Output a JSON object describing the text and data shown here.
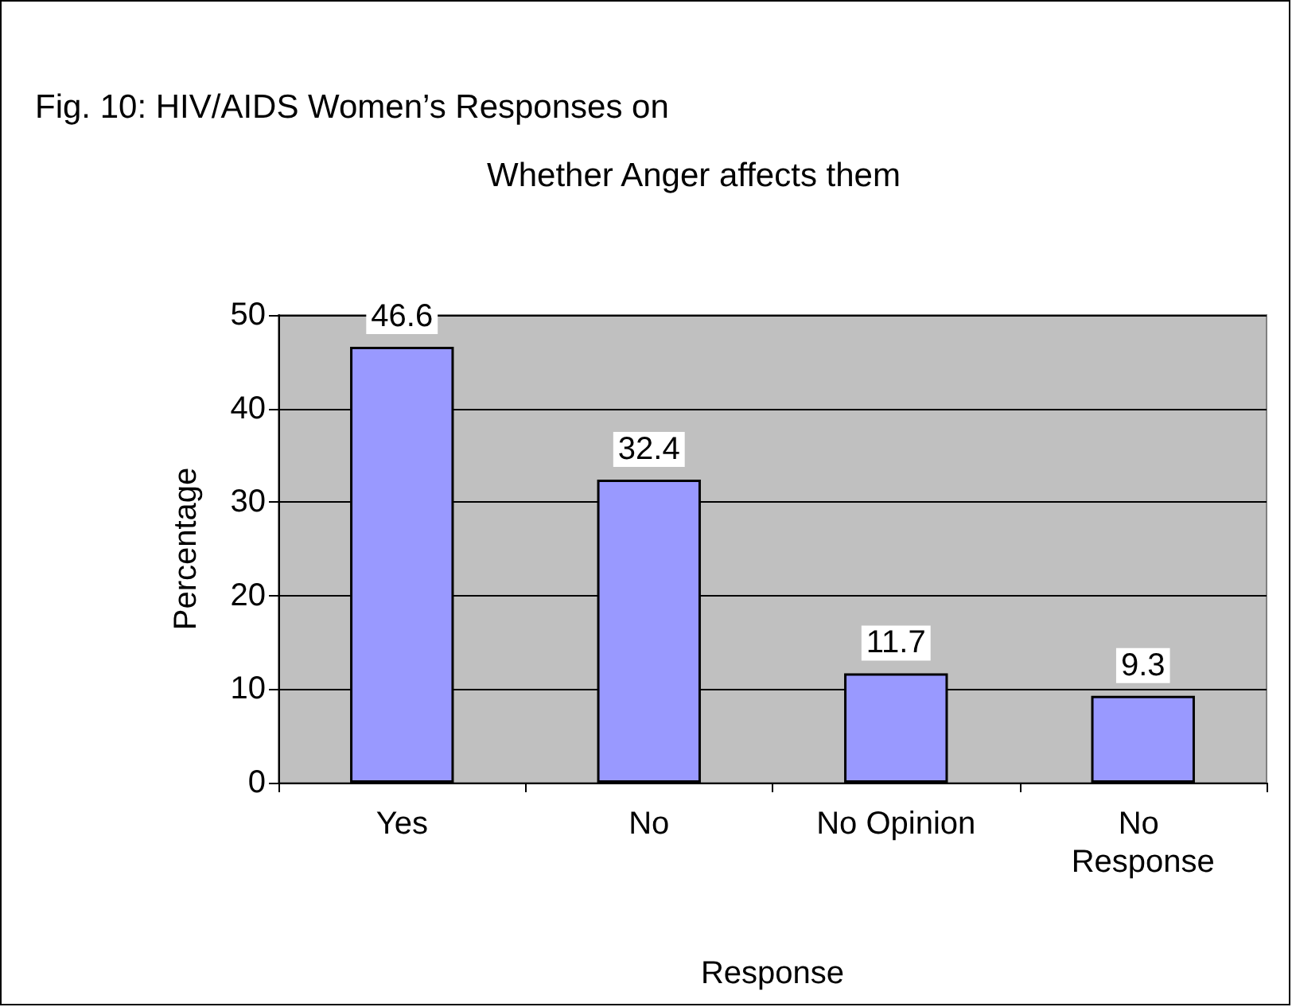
{
  "chart_data": {
    "type": "bar",
    "title": "Fig. 10: HIV/AIDS Women’s Responses on\nWhether Anger affects them",
    "xlabel": "Response",
    "ylabel": "Percentage",
    "categories": [
      "Yes",
      "No",
      "No Opinion",
      "No Response"
    ],
    "values": [
      46.6,
      32.4,
      11.7,
      9.3
    ],
    "color": "#9999ff",
    "ylim": [
      0,
      50
    ],
    "yticks": [
      0,
      10,
      20,
      30,
      40,
      50
    ],
    "grid": "y",
    "data_labels": true
  }
}
